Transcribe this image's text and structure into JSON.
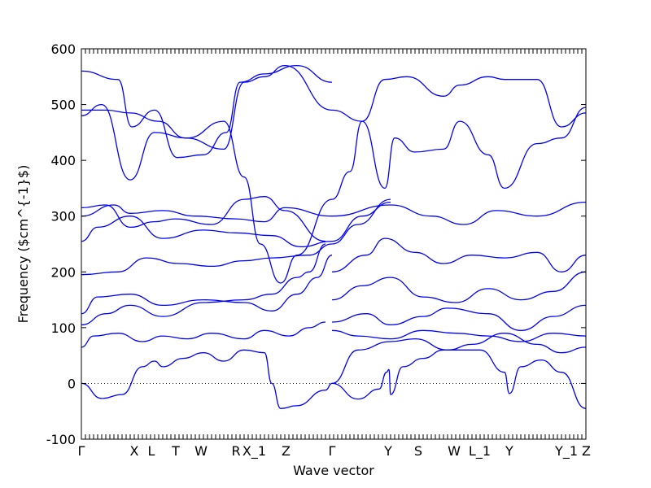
{
  "chart_data": {
    "type": "line",
    "title": "",
    "xlabel": "Wave vector",
    "ylabel": "Frequency ($cm^{-1}$)",
    "ylim": [
      -100,
      600
    ],
    "yticks": [
      -100,
      0,
      100,
      200,
      300,
      400,
      500,
      600
    ],
    "zero_line": {
      "style": "dotted",
      "y": 0
    },
    "x_labels": [
      "Γ",
      "X",
      "L",
      "T",
      "W",
      "R",
      "X_1",
      "Z",
      "Γ",
      "Y",
      "S",
      "W",
      "L_1",
      "Y",
      "Y_1",
      "Z"
    ],
    "line_color": "#0000ff",
    "series": [
      {
        "x": [
          0,
          25,
          50,
          75,
          90,
          100
        ],
        "y": [
          0,
          -27,
          -20,
          30,
          40,
          30
        ]
      },
      {
        "x": [
          100,
          125,
          150,
          175,
          200,
          225
        ],
        "y": [
          30,
          45,
          55,
          40,
          60,
          55
        ]
      },
      {
        "x": [
          225,
          234,
          245,
          264,
          300,
          308
        ],
        "y": [
          55,
          0,
          -45,
          -40,
          -12,
          0
        ]
      },
      {
        "x": [
          308,
          340,
          366,
          375,
          378,
          380
        ],
        "y": [
          0,
          -28,
          -10,
          20,
          25,
          -20
        ]
      },
      {
        "x": [
          380,
          395,
          420,
          445,
          490,
          520
        ],
        "y": [
          -20,
          30,
          45,
          60,
          60,
          20
        ]
      },
      {
        "x": [
          520,
          526,
          540,
          565,
          590,
          620
        ],
        "y": [
          20,
          -18,
          30,
          42,
          20,
          -45
        ]
      },
      {
        "x": [
          0,
          15,
          45,
          75,
          100,
          130,
          160,
          200,
          225,
          255,
          280,
          300
        ],
        "y": [
          65,
          85,
          90,
          75,
          85,
          80,
          90,
          80,
          95,
          85,
          100,
          110
        ]
      },
      {
        "x": [
          0,
          30,
          60,
          100,
          150,
          200,
          234,
          265,
          280,
          300
        ],
        "y": [
          105,
          125,
          140,
          120,
          145,
          150,
          160,
          190,
          200,
          250
        ]
      },
      {
        "x": [
          0,
          20,
          60,
          100,
          150,
          200,
          234,
          265,
          290,
          308
        ],
        "y": [
          125,
          155,
          160,
          140,
          150,
          145,
          130,
          160,
          190,
          230
        ]
      },
      {
        "x": [
          0,
          45,
          80,
          120,
          160,
          200,
          234,
          280,
          308,
          340,
          380
        ],
        "y": [
          195,
          200,
          225,
          215,
          210,
          220,
          225,
          230,
          250,
          285,
          330
        ]
      },
      {
        "x": [
          0,
          20,
          60,
          100,
          150,
          190,
          234,
          270,
          308,
          345,
          380
        ],
        "y": [
          255,
          280,
          300,
          260,
          275,
          270,
          265,
          245,
          255,
          300,
          325
        ]
      },
      {
        "x": [
          0,
          40,
          60,
          100,
          140,
          190,
          225,
          250,
          308,
          380,
          430,
          470,
          510,
          560,
          620
        ],
        "y": [
          300,
          320,
          305,
          310,
          300,
          295,
          290,
          315,
          300,
          320,
          300,
          285,
          310,
          300,
          325
        ]
      },
      {
        "x": [
          0,
          30,
          60,
          90,
          115,
          160,
          200,
          225,
          250,
          300
        ],
        "y": [
          315,
          320,
          280,
          290,
          295,
          285,
          330,
          335,
          310,
          255
        ]
      },
      {
        "x": [
          0,
          25,
          60,
          90,
          130,
          175,
          200,
          220,
          245,
          265,
          308
        ],
        "y": [
          480,
          500,
          365,
          450,
          440,
          470,
          370,
          250,
          180,
          230,
          330
        ]
      },
      {
        "x": [
          0,
          45,
          62,
          90,
          118,
          150,
          178,
          195,
          225,
          265,
          308
        ],
        "y": [
          560,
          545,
          460,
          490,
          405,
          410,
          450,
          540,
          555,
          570,
          540
        ]
      },
      {
        "x": [
          0,
          30,
          60,
          95,
          128,
          175,
          200,
          225,
          250,
          308
        ],
        "y": [
          490,
          490,
          485,
          470,
          440,
          420,
          540,
          550,
          570,
          490
        ]
      },
      {
        "x": [
          308,
          330,
          345,
          373,
          385,
          410,
          445,
          465,
          500,
          520,
          560,
          590,
          620
        ],
        "y": [
          330,
          380,
          470,
          350,
          440,
          415,
          420,
          470,
          410,
          350,
          430,
          440,
          495
        ]
      },
      {
        "x": [
          308,
          345,
          373,
          400,
          445,
          465,
          500,
          520,
          560,
          590,
          620
        ],
        "y": [
          490,
          470,
          545,
          550,
          515,
          535,
          550,
          545,
          545,
          460,
          485
        ]
      },
      {
        "x": [
          308,
          350,
          373,
          410,
          445,
          480,
          520,
          560,
          590,
          620
        ],
        "y": [
          200,
          230,
          260,
          235,
          215,
          230,
          225,
          235,
          200,
          230
        ]
      },
      {
        "x": [
          308,
          345,
          380,
          420,
          460,
          500,
          540,
          580,
          620
        ],
        "y": [
          150,
          175,
          190,
          155,
          145,
          170,
          150,
          165,
          200
        ]
      },
      {
        "x": [
          308,
          350,
          380,
          420,
          450,
          500,
          540,
          580,
          620
        ],
        "y": [
          110,
          125,
          105,
          120,
          135,
          125,
          95,
          120,
          140
        ]
      },
      {
        "x": [
          308,
          340,
          380,
          420,
          460,
          500,
          540,
          580,
          620
        ],
        "y": [
          95,
          85,
          80,
          95,
          90,
          85,
          75,
          90,
          85
        ]
      },
      {
        "x": [
          308,
          340,
          380,
          410,
          450,
          480,
          520,
          560,
          590,
          620
        ],
        "y": [
          0,
          60,
          75,
          80,
          60,
          70,
          90,
          70,
          55,
          65
        ]
      }
    ]
  }
}
